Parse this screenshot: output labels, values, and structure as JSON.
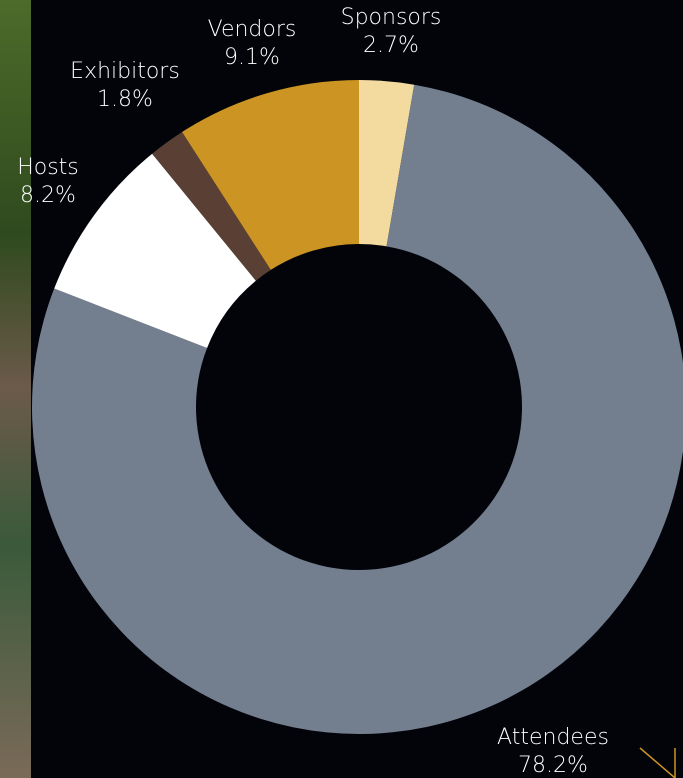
{
  "chart_data": {
    "type": "donut",
    "categories": [
      "Sponsors",
      "Attendees",
      "Hosts",
      "Exhibitors",
      "Vendors"
    ],
    "values": [
      2.7,
      78.2,
      8.2,
      1.8,
      9.1
    ],
    "value_labels": [
      "2.7%",
      "78.2%",
      "8.2%",
      "1.8%",
      "9.1%"
    ],
    "colors": [
      "#f3dba0",
      "#737f8f",
      "#ffffff",
      "#5a4034",
      "#cc9423"
    ]
  }
}
